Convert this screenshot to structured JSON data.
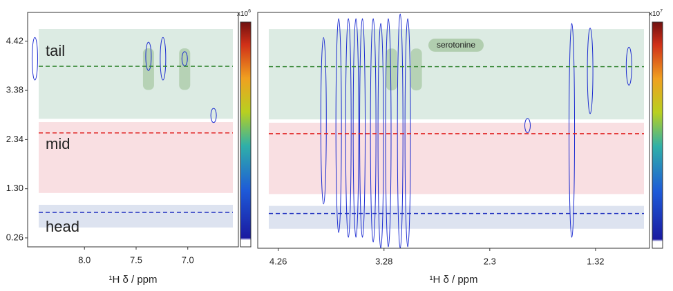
{
  "chart_data": [
    {
      "type": "contour",
      "xlabel": "¹H δ / ppm",
      "xlim": [
        8.55,
        6.51
      ],
      "xticks": [
        {
          "value": 8,
          "label": "8.0"
        },
        7.5,
        {
          "value": 7,
          "label": "7.0"
        }
      ],
      "ylim": [
        0.07,
        5.03
      ],
      "yticks": [
        4.42,
        3.38,
        2.34,
        {
          "value": 1.3,
          "label": "1.30"
        },
        0.26
      ],
      "colorbar_base": "x10",
      "colorbar_exponent": "6",
      "regions": [
        {
          "label": "tail",
          "color": "#dcebe3",
          "text_color": "#1e7a3a",
          "ylim": [
            2.78,
            4.68
          ]
        },
        {
          "label": "mid",
          "color": "#f9dfe2",
          "text_color": "#e03030",
          "ylim": [
            1.21,
            2.71
          ]
        },
        {
          "label": "head",
          "color": "#dde3f0",
          "text_color": "#3a4aa0",
          "ylim": [
            0.48,
            0.96
          ]
        }
      ],
      "lines": [
        {
          "y": 3.89,
          "color": "#3a8a3a"
        },
        {
          "y": 2.48,
          "color": "#e02020"
        },
        {
          "y": 0.8,
          "color": "#2030c0"
        }
      ],
      "highlights": [
        {
          "x": 7.38,
          "ylim": [
            3.39,
            4.27
          ]
        },
        {
          "x": 7.03,
          "ylim": [
            3.39,
            4.27
          ]
        }
      ],
      "peaks": [
        {
          "x": 8.48,
          "ylim": [
            3.6,
            4.5
          ]
        },
        {
          "x": 7.38,
          "ylim": [
            3.8,
            4.4
          ]
        },
        {
          "x": 7.24,
          "ylim": [
            3.6,
            4.5
          ]
        },
        {
          "x": 7.03,
          "ylim": [
            3.9,
            4.2
          ]
        },
        {
          "x": 6.75,
          "ylim": [
            2.7,
            3.0
          ]
        }
      ]
    },
    {
      "type": "contour",
      "xlabel": "¹H δ / ppm",
      "xlim": [
        4.45,
        0.82
      ],
      "xticks": [
        4.26,
        3.28,
        2.3,
        1.32
      ],
      "ylim": [
        0.07,
        5.03
      ],
      "colorbar_base": "x10",
      "colorbar_exponent": "7",
      "annotation": "serotonine",
      "regions": [
        {
          "color": "#dcebe3",
          "ylim": [
            2.78,
            4.68
          ]
        },
        {
          "color": "#f9dfe2",
          "ylim": [
            1.21,
            2.71
          ]
        },
        {
          "color": "#dde3f0",
          "ylim": [
            0.48,
            0.96
          ]
        }
      ],
      "lines": [
        {
          "y": 3.89,
          "color": "#3a8a3a"
        },
        {
          "y": 2.48,
          "color": "#e02020"
        },
        {
          "y": 0.8,
          "color": "#2030c0"
        }
      ],
      "highlights": [
        {
          "x": 3.21,
          "ylim": [
            3.39,
            4.27
          ]
        },
        {
          "x": 2.98,
          "ylim": [
            3.39,
            4.27
          ]
        }
      ],
      "peaks": [
        {
          "x": 3.84,
          "ylim": [
            1.0,
            4.5
          ]
        },
        {
          "x": 3.7,
          "ylim": [
            0.4,
            4.9
          ]
        },
        {
          "x": 3.61,
          "ylim": [
            0.3,
            4.9
          ]
        },
        {
          "x": 3.54,
          "ylim": [
            0.3,
            4.9
          ]
        },
        {
          "x": 3.48,
          "ylim": [
            0.3,
            4.9
          ]
        },
        {
          "x": 3.38,
          "ylim": [
            0.2,
            4.9
          ]
        },
        {
          "x": 3.31,
          "ylim": [
            0.07,
            4.8
          ]
        },
        {
          "x": 3.24,
          "ylim": [
            0.1,
            4.9
          ]
        },
        {
          "x": 3.13,
          "ylim": [
            0.07,
            5.0
          ]
        },
        {
          "x": 3.06,
          "ylim": [
            0.1,
            4.9
          ]
        },
        {
          "x": 1.95,
          "ylim": [
            2.5,
            2.8
          ]
        },
        {
          "x": 1.54,
          "ylim": [
            0.3,
            4.8
          ]
        },
        {
          "x": 1.37,
          "ylim": [
            2.9,
            4.7
          ]
        },
        {
          "x": 1.01,
          "ylim": [
            3.5,
            4.3
          ]
        }
      ]
    }
  ]
}
